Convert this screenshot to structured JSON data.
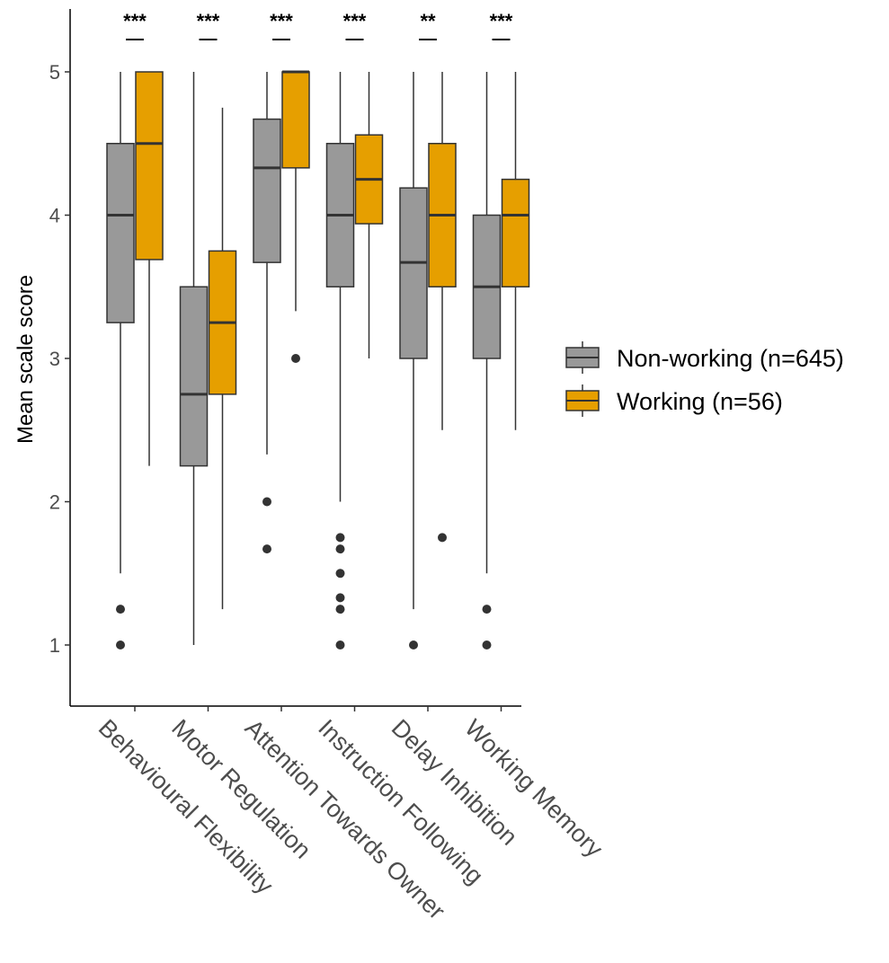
{
  "chart_data": {
    "type": "box",
    "ylabel": "Mean scale score",
    "xlabel": "",
    "ylim": [
      0.6,
      5.45
    ],
    "yticks": [
      1,
      2,
      3,
      4,
      5
    ],
    "grid": false,
    "legend_position": "right",
    "categories": [
      "Behavioural Flexibility",
      "Motor Regulation",
      "Attention Towards Owner",
      "Instruction Following",
      "Delay Inhibition",
      "Working Memory"
    ],
    "significance": [
      "***",
      "***",
      "***",
      "***",
      "**",
      "***"
    ],
    "series": [
      {
        "name": "Non-working (n=645)",
        "color": "#999999",
        "boxes": [
          {
            "lower_whisker": 1.5,
            "q1": 3.25,
            "median": 4.0,
            "q3": 4.5,
            "upper_whisker": 5.0,
            "outliers": [
              1.25,
              1.0
            ]
          },
          {
            "lower_whisker": 1.0,
            "q1": 2.25,
            "median": 2.75,
            "q3": 3.5,
            "upper_whisker": 5.0,
            "outliers": []
          },
          {
            "lower_whisker": 2.33,
            "q1": 3.67,
            "median": 4.33,
            "q3": 4.67,
            "upper_whisker": 5.0,
            "outliers": [
              2.0,
              1.67
            ]
          },
          {
            "lower_whisker": 2.0,
            "q1": 3.5,
            "median": 4.0,
            "q3": 4.5,
            "upper_whisker": 5.0,
            "outliers": [
              1.75,
              1.67,
              1.5,
              1.33,
              1.25,
              1.0
            ]
          },
          {
            "lower_whisker": 1.25,
            "q1": 3.0,
            "median": 3.67,
            "q3": 4.19,
            "upper_whisker": 5.0,
            "outliers": [
              1.0
            ]
          },
          {
            "lower_whisker": 1.5,
            "q1": 3.0,
            "median": 3.5,
            "q3": 4.0,
            "upper_whisker": 5.0,
            "outliers": [
              1.25,
              1.0
            ]
          }
        ]
      },
      {
        "name": "Working (n=56)",
        "color": "#E69F00",
        "boxes": [
          {
            "lower_whisker": 2.25,
            "q1": 3.69,
            "median": 4.5,
            "q3": 5.0,
            "upper_whisker": 5.0,
            "outliers": []
          },
          {
            "lower_whisker": 1.25,
            "q1": 2.75,
            "median": 3.25,
            "q3": 3.75,
            "upper_whisker": 4.75,
            "outliers": []
          },
          {
            "lower_whisker": 3.33,
            "q1": 4.33,
            "median": 5.0,
            "q3": 5.0,
            "upper_whisker": 5.0,
            "outliers": [
              3.0
            ]
          },
          {
            "lower_whisker": 3.0,
            "q1": 3.94,
            "median": 4.25,
            "q3": 4.56,
            "upper_whisker": 5.0,
            "outliers": []
          },
          {
            "lower_whisker": 2.5,
            "q1": 3.5,
            "median": 4.0,
            "q3": 4.5,
            "upper_whisker": 5.0,
            "outliers": [
              1.75
            ]
          },
          {
            "lower_whisker": 2.5,
            "q1": 3.5,
            "median": 4.0,
            "q3": 4.25,
            "upper_whisker": 5.0,
            "outliers": []
          }
        ]
      }
    ]
  }
}
